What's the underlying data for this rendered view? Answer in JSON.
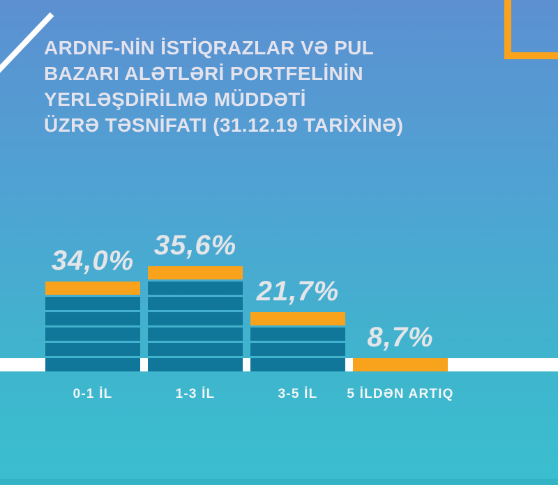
{
  "header": {
    "title": "ARDNF-NİN İSTİQRAZLAR VƏ PUL\nBAZARI ALƏTLƏRİ PORTFELİNİN\nYERLƏŞDİRİLMƏ MÜDDƏTİ\nÜZRƏ TƏSNİFATI (31.12.19 TARİXİNƏ)"
  },
  "chart_data": {
    "type": "bar",
    "title": "ARDNF-nin istiqrazlar və pul bazarı alətləri portfelinin yerləşdirilmə müddəti üzrə təsnifatı (31.12.19 tarixinə)",
    "categories": [
      "0-1 İL",
      "1-3 İL",
      "3-5 İL",
      "5 İLDƏN ARTIQ"
    ],
    "values": [
      34.0,
      35.6,
      21.7,
      8.7
    ],
    "value_labels": [
      "34,0%",
      "35,6%",
      "21,7%",
      "8,7%"
    ],
    "unit_blocks": [
      6,
      7,
      4,
      1
    ],
    "xlabel": "",
    "ylabel": "",
    "ylim": [
      0,
      40
    ],
    "grid": false,
    "legend": false,
    "bar_style": "stacked unit segments with orange top cap over white baseline band"
  },
  "colors": {
    "bg_top": "#5C90D1",
    "bg_bottom": "#3ABFCF",
    "bar_segment": "#10769A",
    "accent_orange": "#F9A21B",
    "baseline_white": "#FFFFFF",
    "title_text": "#E4E3ED",
    "value_text": "#E4E5E8",
    "category_text": "#F4F6F7",
    "footer_strip": "#34B3C4"
  }
}
